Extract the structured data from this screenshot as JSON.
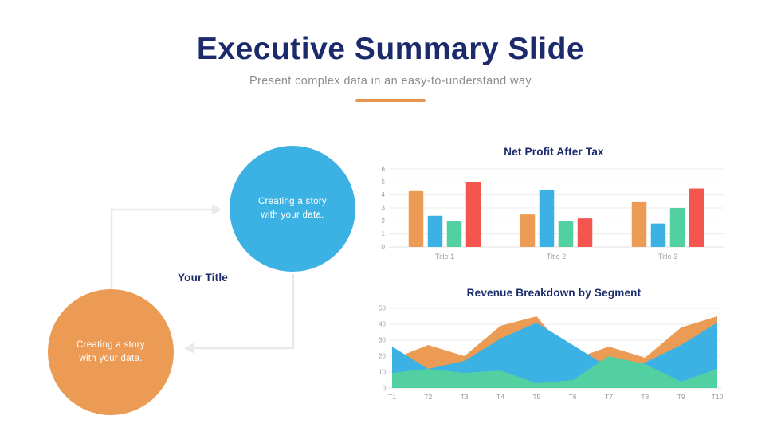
{
  "slide": {
    "title": "Executive Summary Slide",
    "subtitle": "Present complex data in an easy-to-understand way"
  },
  "diagram": {
    "title": "Your Title",
    "circles": [
      {
        "name": "blue-circle",
        "color": "#3cb1e3",
        "line1": "Creating a story",
        "line2": "with your data."
      },
      {
        "name": "orange-circle",
        "color": "#ec9b55",
        "line1": "Creating a story",
        "line2": "with your data."
      }
    ],
    "arrow_color": "#e9e9e9"
  },
  "colors": {
    "navy": "#1b2a6b",
    "subtitle_gray": "#8c8c8c",
    "accent_orange": "#e8964f",
    "grid": "#ececec",
    "axis": "#e0e0e0",
    "tick_text": "#9b9b9b"
  },
  "chart_data": [
    {
      "type": "bar",
      "title": "Net Profit After Tax",
      "categories": [
        "Title 1",
        "Title 2",
        "Title 3"
      ],
      "series": [
        {
          "name": "orange",
          "color": "#ec9b55",
          "values": [
            4.3,
            2.5,
            3.5
          ]
        },
        {
          "name": "blue",
          "color": "#3cb1e3",
          "values": [
            2.4,
            4.4,
            1.8
          ]
        },
        {
          "name": "green",
          "color": "#52d0a2",
          "values": [
            2.0,
            2.0,
            3.0
          ]
        },
        {
          "name": "red",
          "color": "#f4564f",
          "values": [
            5.0,
            2.2,
            4.5
          ]
        }
      ],
      "ylim": [
        0,
        6
      ],
      "yticks": [
        0,
        1,
        2,
        3,
        4,
        5,
        6
      ],
      "grid": true,
      "legend": "none"
    },
    {
      "type": "area",
      "title": "Revenue Breakdown by Segment",
      "x": [
        "T1",
        "T2",
        "T3",
        "T4",
        "T5",
        "T6",
        "T7",
        "T8",
        "T9",
        "T10"
      ],
      "series": [
        {
          "name": "orange",
          "color": "#ec9b55",
          "values": [
            18,
            27,
            20,
            39,
            45,
            18,
            26,
            19,
            38,
            45
          ]
        },
        {
          "name": "blue",
          "color": "#3cb1e3",
          "values": [
            26,
            12,
            17,
            31,
            41,
            27,
            13,
            16,
            27,
            41
          ]
        },
        {
          "name": "green",
          "color": "#52d0a2",
          "values": [
            9.5,
            12,
            9.5,
            11,
            3,
            5,
            20,
            15,
            4,
            12
          ]
        }
      ],
      "ylim": [
        0,
        50
      ],
      "yticks": [
        0,
        10,
        20,
        30,
        40,
        50
      ],
      "grid": true,
      "overlap": true,
      "legend": "none"
    }
  ]
}
